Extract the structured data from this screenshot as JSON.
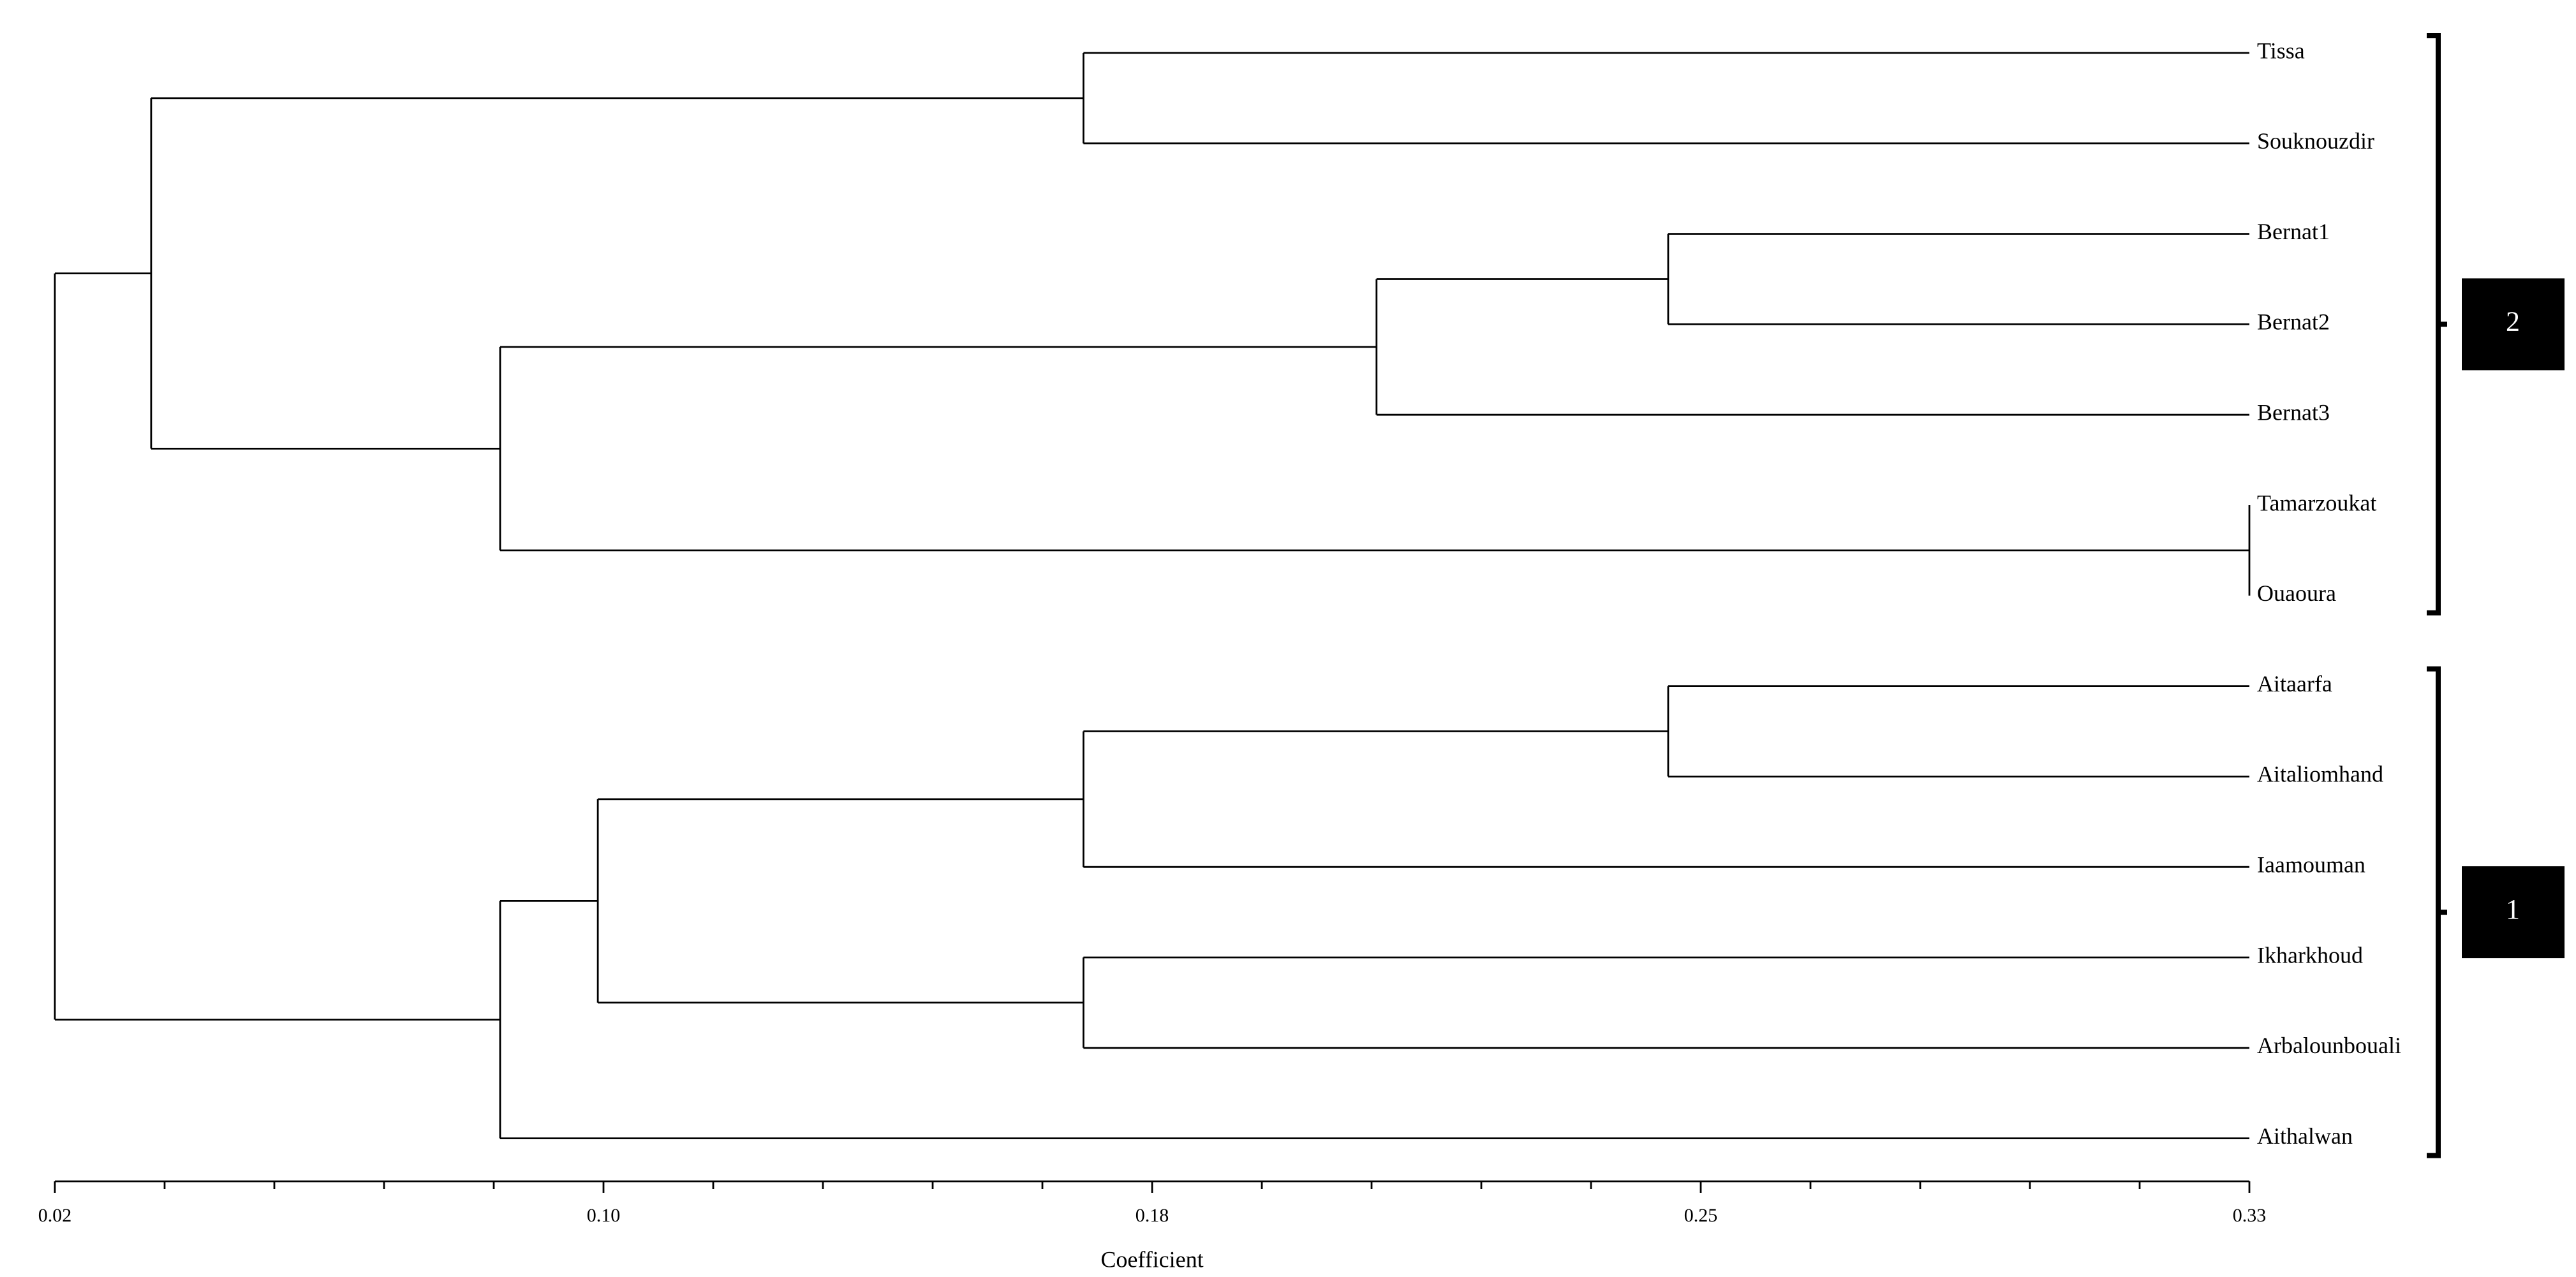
{
  "chart_data": {
    "type": "dendrogram",
    "x_label": "Coefficient",
    "xlim": [
      0.02,
      0.33
    ],
    "xticks": [
      0.02,
      {
        "value": 0.0975,
        "label": "0.10"
      },
      {
        "value": 0.175,
        "label": "0.18"
      },
      {
        "value": 0.2525,
        "label": "0.25"
      },
      0.33
    ],
    "xminorticks": [
      0.0355,
      0.051,
      0.0665,
      0.082,
      0.113,
      0.1285,
      0.144,
      0.1595,
      0.1905,
      0.206,
      0.2215,
      0.237,
      0.268,
      0.2835,
      0.299,
      0.3145
    ],
    "color": "#000000",
    "tree": {
      "height": 0.02,
      "children": [
        {
          "height": 0.0336,
          "group": "2",
          "children": [
            {
              "height": 0.1653,
              "children": [
                {
                  "label": "Tissa"
                },
                {
                  "label": "Souknouzdir"
                }
              ]
            },
            {
              "height": 0.0829,
              "children": [
                {
                  "height": 0.2067,
                  "children": [
                    {
                      "height": 0.2479,
                      "children": [
                        {
                          "label": "Bernat1"
                        },
                        {
                          "label": "Bernat2"
                        }
                      ]
                    },
                    {
                      "label": "Bernat3"
                    }
                  ]
                },
                {
                  "height": 0.33,
                  "children": [
                    {
                      "label": "Tamarzoukat"
                    },
                    {
                      "label": "Ouaoura"
                    }
                  ]
                }
              ]
            }
          ]
        },
        {
          "height": 0.0829,
          "group": "1",
          "children": [
            {
              "height": 0.0967,
              "children": [
                {
                  "height": 0.1653,
                  "children": [
                    {
                      "height": 0.2479,
                      "children": [
                        {
                          "label": "Aitaarfa"
                        },
                        {
                          "label": "Aitaliomhand"
                        }
                      ]
                    },
                    {
                      "label": "Iaamouman"
                    }
                  ]
                },
                {
                  "height": 0.1653,
                  "children": [
                    {
                      "label": "Ikharkhoud"
                    },
                    {
                      "label": "Arbalounbouali"
                    }
                  ]
                }
              ]
            },
            {
              "label": "Aithalwan"
            }
          ]
        }
      ]
    }
  }
}
